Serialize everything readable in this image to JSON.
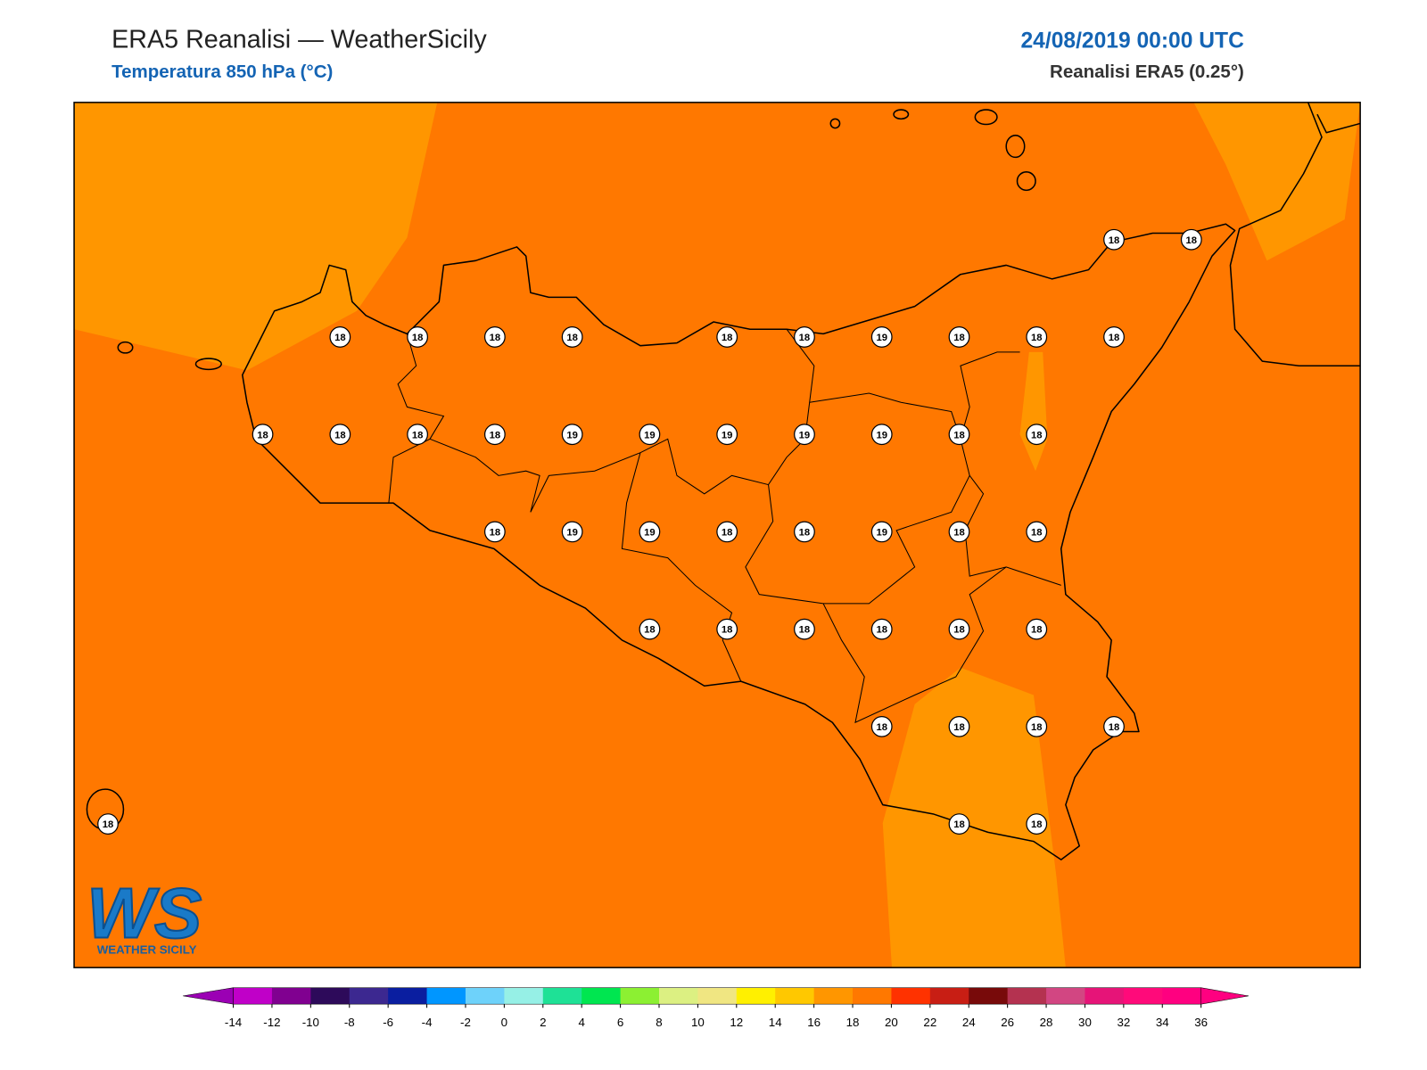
{
  "header": {
    "title": "ERA5 Reanalisi — WeatherSicily",
    "subtitle": "Temperatura 850 hPa (°C)",
    "date": "24/08/2019 00:00 UTC",
    "source": "Reanalisi ERA5 (0.25°)"
  },
  "logo": {
    "mark": "WS",
    "name": "WEATHER SICILY"
  },
  "stations": {
    "rows": [
      [
        null,
        null,
        null,
        null,
        null,
        null,
        null,
        null,
        null,
        null,
        null,
        null,
        null,
        18,
        18
      ],
      [
        null,
        null,
        null,
        18,
        18,
        18,
        18,
        null,
        18,
        18,
        19,
        18,
        18,
        18,
        null
      ],
      [
        null,
        null,
        18,
        18,
        18,
        18,
        19,
        19,
        19,
        19,
        19,
        18,
        18,
        null,
        null
      ],
      [
        null,
        null,
        null,
        null,
        null,
        18,
        19,
        19,
        18,
        18,
        19,
        18,
        18,
        null,
        null
      ],
      [
        null,
        null,
        null,
        null,
        null,
        null,
        null,
        18,
        18,
        18,
        18,
        18,
        18,
        null,
        null
      ],
      [
        null,
        null,
        null,
        null,
        null,
        null,
        null,
        null,
        null,
        null,
        18,
        18,
        18,
        18,
        null
      ],
      [
        18,
        null,
        null,
        null,
        null,
        null,
        null,
        null,
        null,
        null,
        null,
        18,
        18,
        null,
        null
      ]
    ]
  },
  "colorbar": {
    "ticks": [
      -14,
      -12,
      -10,
      -8,
      -6,
      -4,
      -2,
      0,
      2,
      4,
      6,
      8,
      10,
      12,
      14,
      16,
      18,
      20,
      22,
      24,
      26,
      28,
      30,
      32,
      34,
      36
    ],
    "colors": [
      "#c000c8",
      "#800090",
      "#2d0a5a",
      "#3c2890",
      "#0a1ea0",
      "#0096ff",
      "#6ed2fa",
      "#96f0e6",
      "#1ee196",
      "#00e650",
      "#8cf032",
      "#dcf082",
      "#f0e682",
      "#fff000",
      "#ffc800",
      "#ff9600",
      "#ff7800",
      "#ff3200",
      "#c81e14",
      "#780a0a",
      "#b43250",
      "#d24682",
      "#e61478",
      "#ff0a7a",
      "#ff0080"
    ],
    "under_color": "#9b00b4",
    "over_color": "#ff0080"
  }
}
